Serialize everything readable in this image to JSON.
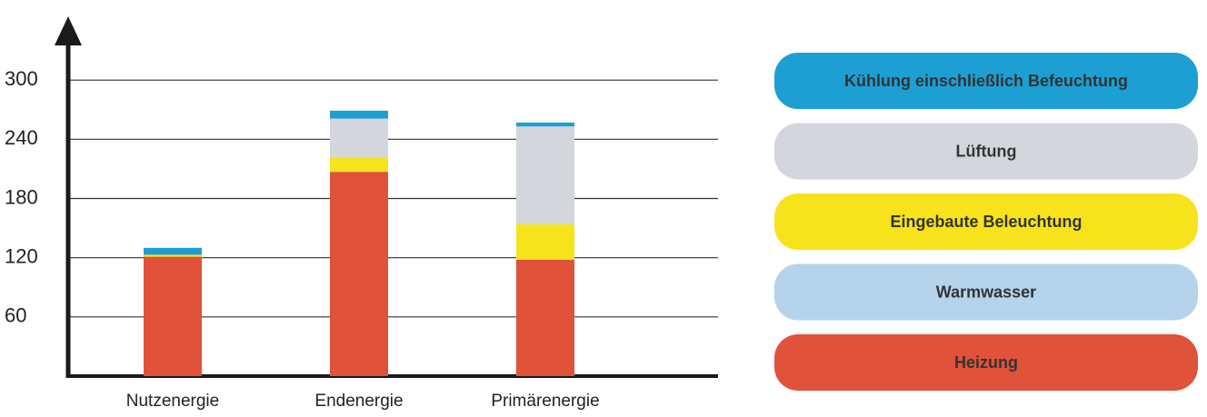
{
  "chart_data": {
    "type": "stacked-bar",
    "categories": [
      "Nutzenergie",
      "Endenergie",
      "Primärenergie"
    ],
    "series": [
      {
        "name": "Heizung",
        "color": "#e0523a",
        "values": [
          121,
          207,
          118
        ]
      },
      {
        "name": "Warmwasser",
        "color": "#b6d3ec",
        "values": [
          0,
          0,
          0
        ]
      },
      {
        "name": "Eingebaute Beleuchtung",
        "color": "#f7e31c",
        "values": [
          2,
          15,
          36
        ]
      },
      {
        "name": "Lüftung",
        "color": "#d3d6dc",
        "values": [
          0,
          39,
          99
        ]
      },
      {
        "name": "Kühlung einschließlich Befeuchtung",
        "color": "#1e9fd4",
        "values": [
          7,
          8,
          4
        ]
      }
    ],
    "ylim": [
      0,
      360
    ],
    "yticks": [
      60,
      120,
      180,
      240,
      300
    ],
    "grid": true
  }
}
